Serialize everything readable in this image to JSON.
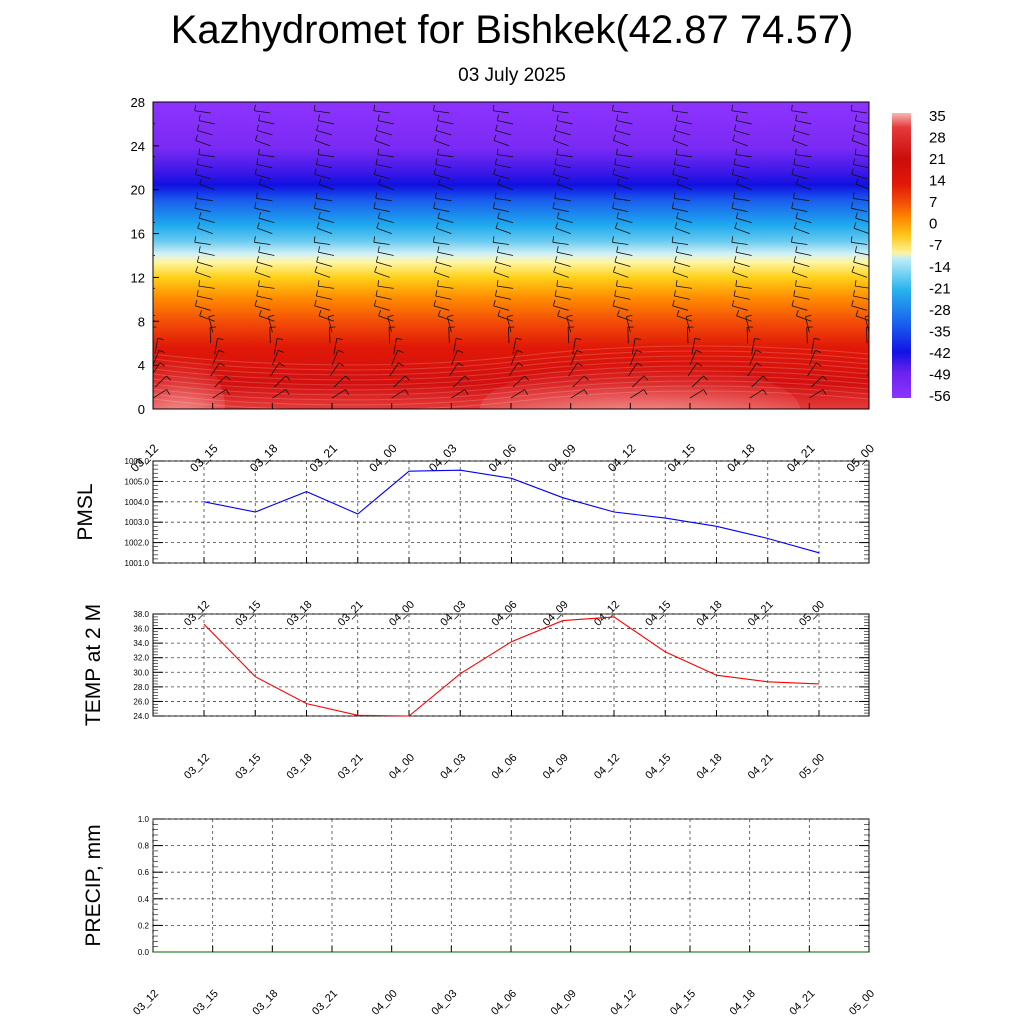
{
  "title": "Kazhydromet for Bishkek(42.87 74.57)",
  "subtitle": "03 July 2025",
  "chart_data": [
    {
      "type": "heatmap",
      "name": "vertical-cross-section",
      "xlabel": "",
      "ylabel": "",
      "x_ticks": [
        "03_12",
        "03_15",
        "03_18",
        "03_21",
        "04_00",
        "04_03",
        "04_06",
        "04_09",
        "04_12",
        "04_15",
        "04_18",
        "04_21",
        "05_00"
      ],
      "y_ticks": [
        0,
        4,
        8,
        12,
        16,
        20,
        24,
        28
      ],
      "ylim": [
        0,
        28
      ],
      "colorbar_labels": [
        "35",
        "28",
        "21",
        "14",
        "7",
        "0",
        "-7",
        "-14",
        "-21",
        "-28",
        "-35",
        "-42",
        "-49",
        "-56"
      ],
      "colorbar_placement": "right",
      "has_wind_barbs": true,
      "colors": {
        "ramp": [
          "#f8b8b8",
          "#e53b3b",
          "#cc0d0d",
          "#e01808",
          "#f24a08",
          "#ff8a00",
          "#ffc61a",
          "#fff39a",
          "#c2edf7",
          "#28b3ee",
          "#1a66ee",
          "#1212e6",
          "#6a22ee",
          "#8e33ff"
        ]
      }
    },
    {
      "type": "line",
      "name": "pmsl",
      "ylabel": "PMSL",
      "x": [
        "03_12",
        "03_15",
        "03_18",
        "03_21",
        "04_00",
        "04_03",
        "04_06",
        "04_09",
        "04_12",
        "04_15",
        "04_18",
        "04_21",
        "05_00"
      ],
      "values": [
        1004.0,
        1003.5,
        1004.5,
        1003.4,
        1005.5,
        1005.55,
        1005.15,
        1004.2,
        1003.5,
        1003.2,
        1002.8,
        1002.2,
        1001.5
      ],
      "ylim": [
        1001.0,
        1006.0
      ],
      "y_ticks": [
        "1001.0",
        "1002.0",
        "1003.0",
        "1004.0",
        "1005.0",
        "1006.0"
      ],
      "grid": true,
      "color": "#0000ff"
    },
    {
      "type": "line",
      "name": "temp",
      "ylabel": "TEMP at 2 M",
      "x": [
        "03_12",
        "03_15",
        "03_18",
        "03_21",
        "04_00",
        "04_03",
        "04_06",
        "04_09",
        "04_12",
        "04_15",
        "04_18",
        "04_21",
        "05_00"
      ],
      "values": [
        36.6,
        29.4,
        25.7,
        24.1,
        24.0,
        29.8,
        34.2,
        37.1,
        37.6,
        32.8,
        29.6,
        28.7,
        28.4
      ],
      "ylim": [
        24.0,
        38.0
      ],
      "y_ticks": [
        "24.0",
        "26.0",
        "28.0",
        "30.0",
        "32.0",
        "34.0",
        "36.0",
        "38.0"
      ],
      "grid": true,
      "color": "#ff0000"
    },
    {
      "type": "line",
      "name": "precip",
      "ylabel": "PRECIP, mm",
      "x": [
        "03_12",
        "03_15",
        "03_18",
        "03_21",
        "04_00",
        "04_03",
        "04_06",
        "04_09",
        "04_12",
        "04_15",
        "04_18",
        "04_21",
        "05_00"
      ],
      "values": [
        0,
        0,
        0,
        0,
        0,
        0,
        0,
        0,
        0,
        0,
        0,
        0,
        0
      ],
      "ylim": [
        0.0,
        1.0
      ],
      "y_ticks": [
        "0.0",
        "0.2",
        "0.4",
        "0.6",
        "0.8",
        "1.0"
      ],
      "grid": true,
      "color": "#006400"
    }
  ]
}
